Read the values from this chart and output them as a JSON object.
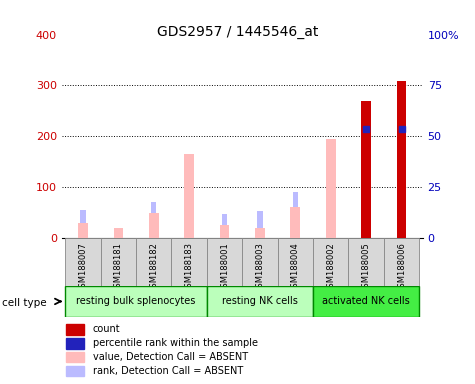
{
  "title": "GDS2957 / 1445546_at",
  "samples": [
    "GSM188007",
    "GSM188181",
    "GSM188182",
    "GSM188183",
    "GSM188001",
    "GSM188003",
    "GSM188004",
    "GSM188002",
    "GSM188005",
    "GSM188006"
  ],
  "group_configs": [
    {
      "name": "resting bulk splenocytes",
      "start": 0,
      "end": 4,
      "color": "#bbffbb"
    },
    {
      "name": "resting NK cells",
      "start": 4,
      "end": 7,
      "color": "#bbffbb"
    },
    {
      "name": "activated NK cells",
      "start": 7,
      "end": 10,
      "color": "#44ee44"
    }
  ],
  "pink_values": [
    30,
    20,
    50,
    165,
    25,
    20,
    62,
    195,
    0,
    0
  ],
  "blue_rank_values": [
    55,
    20,
    70,
    150,
    47,
    53,
    90,
    0,
    0,
    0
  ],
  "red_counts": [
    0,
    0,
    0,
    0,
    0,
    0,
    0,
    0,
    270,
    308
  ],
  "blue_sq_values": [
    0,
    0,
    0,
    0,
    0,
    0,
    0,
    0,
    215,
    215
  ],
  "ylim_left": [
    0,
    400
  ],
  "yticks_left": [
    0,
    100,
    200,
    300,
    400
  ],
  "yticks_right": [
    0,
    25,
    50,
    75,
    100
  ],
  "yticklabels_right": [
    "0",
    "25",
    "50",
    "75",
    "100%"
  ],
  "left_color": "#cc0000",
  "right_color": "#0000bb",
  "pink_color": "#ffbbbb",
  "blue_bar_color": "#bbbbff",
  "red_bar_color": "#cc0000",
  "blue_sq_color": "#2222bb",
  "bar_width": 0.5,
  "legend_items": [
    {
      "label": "count",
      "color": "#cc0000"
    },
    {
      "label": "percentile rank within the sample",
      "color": "#2222bb"
    },
    {
      "label": "value, Detection Call = ABSENT",
      "color": "#ffbbbb"
    },
    {
      "label": "rank, Detection Call = ABSENT",
      "color": "#bbbbff"
    }
  ],
  "cell_type_label": "cell type"
}
